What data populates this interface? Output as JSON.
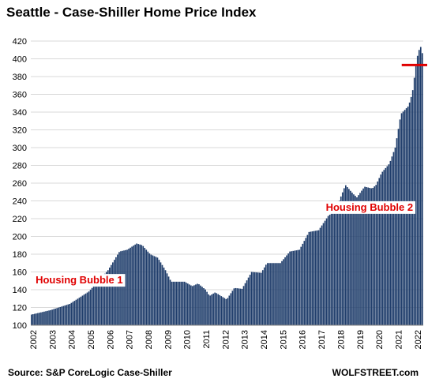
{
  "chart_data": {
    "type": "bar",
    "title": "Seattle - Case-Shiller Home Price Index",
    "xlabel": "",
    "ylabel": "",
    "ylim": [
      100,
      420
    ],
    "yticks": [
      100,
      120,
      140,
      160,
      180,
      200,
      220,
      240,
      260,
      280,
      300,
      320,
      340,
      360,
      380,
      400,
      420
    ],
    "x_tick_labels": [
      "2002",
      "2003",
      "2004",
      "2005",
      "2006",
      "2007",
      "2008",
      "2009",
      "2010",
      "2011",
      "2012",
      "2013",
      "2014",
      "2015",
      "2016",
      "2017",
      "2018",
      "2019",
      "2020",
      "2021",
      "2022"
    ],
    "grid": true,
    "bar_color": "#1f3d6b",
    "keypoints": [
      [
        2002.0,
        112
      ],
      [
        2003.0,
        117
      ],
      [
        2004.0,
        124
      ],
      [
        2005.0,
        138
      ],
      [
        2006.0,
        162
      ],
      [
        2006.6,
        183
      ],
      [
        2007.0,
        185
      ],
      [
        2007.5,
        192
      ],
      [
        2007.8,
        190
      ],
      [
        2008.2,
        180
      ],
      [
        2008.6,
        176
      ],
      [
        2009.0,
        162
      ],
      [
        2009.3,
        149
      ],
      [
        2010.0,
        149
      ],
      [
        2010.4,
        144
      ],
      [
        2010.7,
        147
      ],
      [
        2011.1,
        140
      ],
      [
        2011.3,
        133
      ],
      [
        2011.6,
        137
      ],
      [
        2012.2,
        129
      ],
      [
        2012.6,
        142
      ],
      [
        2013.0,
        141
      ],
      [
        2013.5,
        160
      ],
      [
        2014.0,
        159
      ],
      [
        2014.3,
        170
      ],
      [
        2015.0,
        170
      ],
      [
        2015.5,
        183
      ],
      [
        2016.0,
        185
      ],
      [
        2016.5,
        205
      ],
      [
        2017.0,
        207
      ],
      [
        2017.5,
        223
      ],
      [
        2017.9,
        230
      ],
      [
        2018.4,
        258
      ],
      [
        2018.8,
        248
      ],
      [
        2019.0,
        244
      ],
      [
        2019.4,
        256
      ],
      [
        2019.8,
        254
      ],
      [
        2020.0,
        258
      ],
      [
        2020.3,
        272
      ],
      [
        2020.7,
        282
      ],
      [
        2021.0,
        300
      ],
      [
        2021.3,
        338
      ],
      [
        2021.7,
        347
      ],
      [
        2021.9,
        362
      ],
      [
        2022.05,
        387
      ],
      [
        2022.2,
        408
      ],
      [
        2022.35,
        414
      ],
      [
        2022.42,
        406
      ]
    ],
    "reference_line": {
      "value": 393,
      "x_start": 2021.3,
      "x_end": 2022.42,
      "color": "#e00000"
    },
    "annotations": [
      {
        "text": "Housing Bubble 1",
        "x": 2002.25,
        "y": 147
      },
      {
        "text": "Housing Bubble 2",
        "x": 2017.35,
        "y": 229
      }
    ]
  },
  "source": "Source: S&P CoreLogic Case-Shiller",
  "brand": "WOLFSTREET.com"
}
